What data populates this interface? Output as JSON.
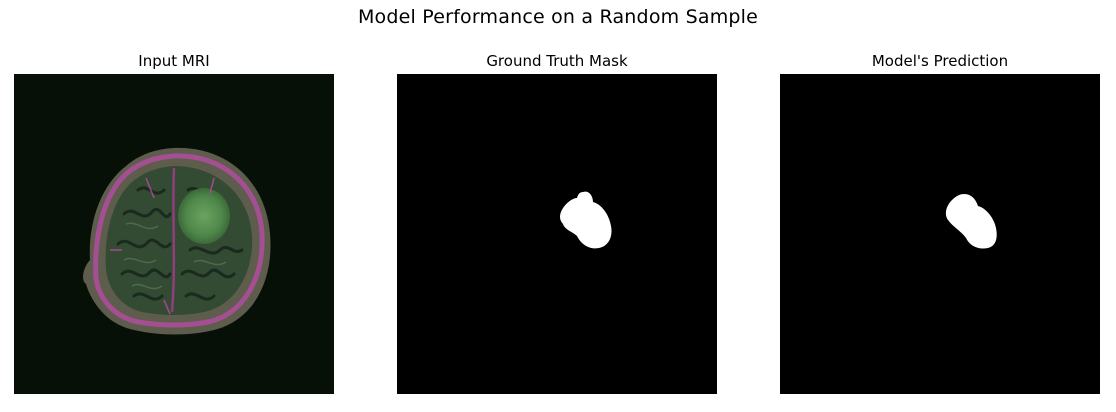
{
  "figure": {
    "title": "Model Performance on a Random Sample",
    "panels": [
      {
        "title": "Input MRI",
        "image": "axial-brain-mri-with-tumor"
      },
      {
        "title": "Ground Truth Mask",
        "image": "binary-tumor-mask"
      },
      {
        "title": "Model's Prediction",
        "image": "binary-predicted-mask"
      }
    ],
    "colors": {
      "background": "#ffffff",
      "image_background": "#000000",
      "mask": "#ffffff",
      "mri_tumor": "#4f8a4a",
      "mri_outline": "#a0508f"
    }
  }
}
